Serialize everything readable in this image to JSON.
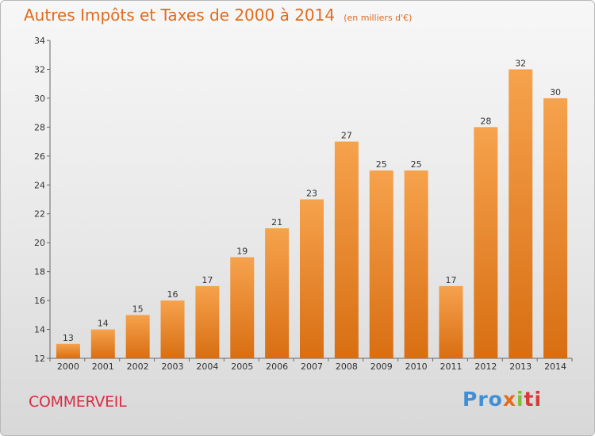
{
  "title": "Autres Impôts et Taxes de 2000 à 2014",
  "subtitle": "(en milliers d'€)",
  "commune": "COMMERVEIL",
  "brand": {
    "p1": "Pro",
    "p2": "x",
    "p3": "i",
    "p4": "ti"
  },
  "colors": {
    "bar_top": "#f6a24d",
    "bar_bottom": "#d86e12",
    "title": "#e06b1c",
    "commune": "#d72c45"
  },
  "chart_data": {
    "type": "bar",
    "categories": [
      "2000",
      "2001",
      "2002",
      "2003",
      "2004",
      "2005",
      "2006",
      "2007",
      "2008",
      "2009",
      "2010",
      "2011",
      "2012",
      "2013",
      "2014"
    ],
    "values": [
      13,
      14,
      15,
      16,
      17,
      19,
      21,
      23,
      27,
      25,
      25,
      17,
      28,
      32,
      30
    ],
    "ylim": [
      12,
      34
    ],
    "yticks": [
      12,
      14,
      16,
      18,
      20,
      22,
      24,
      26,
      28,
      30,
      32,
      34
    ],
    "grid": false,
    "legend": "none"
  }
}
